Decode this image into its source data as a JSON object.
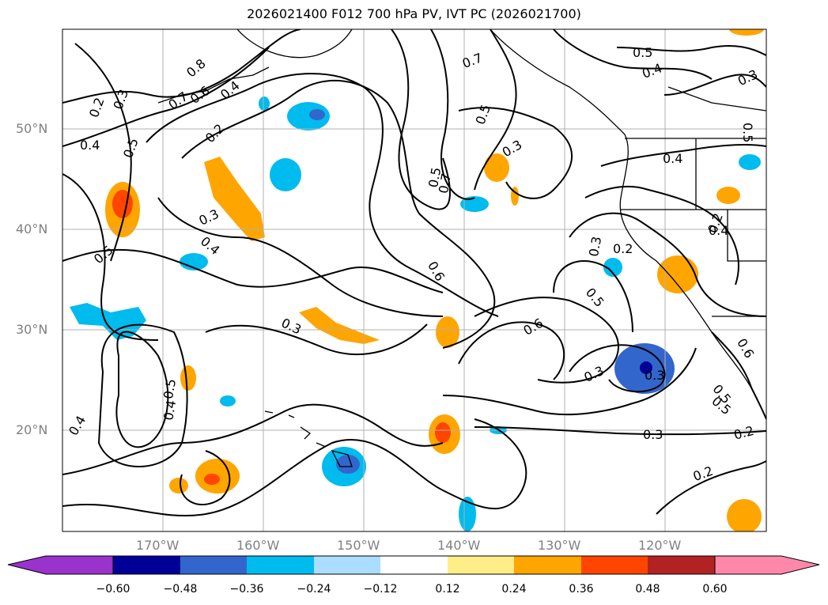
{
  "title": "2026021400 F012 700 hPa PV, IVT PC (2026021700)",
  "latitude_labels": [
    "50°N",
    "40°N",
    "30°N",
    "20°N"
  ],
  "longitude_labels": [
    "170°W",
    "160°W",
    "150°W",
    "140°W",
    "130°W",
    "120°W"
  ],
  "colorbar": {
    "tick_labels": [
      "−0.60",
      "−0.48",
      "−0.36",
      "−0.24",
      "−0.12",
      "0.12",
      "0.24",
      "0.36",
      "0.48",
      "0.60"
    ],
    "colors": [
      "#9933cc",
      "#000099",
      "#3366cc",
      "#00bbee",
      "#aaddff",
      "#ffffff",
      "#ffee88",
      "#ffa500",
      "#ff4500",
      "#b22222",
      "#ff88aa"
    ]
  },
  "contour_labels": [
    "0.8",
    "0.7",
    "0.6",
    "0.4",
    "0.2",
    "0.3",
    "0.5",
    "0.4",
    "0.5",
    "0.2",
    "0.3",
    "0.5",
    "0.4",
    "0.3",
    "0.5",
    "0.7",
    "0.7",
    "0.5",
    "0.3",
    "0.4",
    "0.4",
    "0.5",
    "0.6",
    "0.3",
    "0.2",
    "0.3",
    "0.5",
    "0.3",
    "0.2",
    "0.6",
    "0.5",
    "0.4",
    "0.3",
    "0.6",
    "0.5",
    "0.5",
    "0.4",
    "0.3",
    "0.2",
    "0.2",
    "0.4"
  ]
}
